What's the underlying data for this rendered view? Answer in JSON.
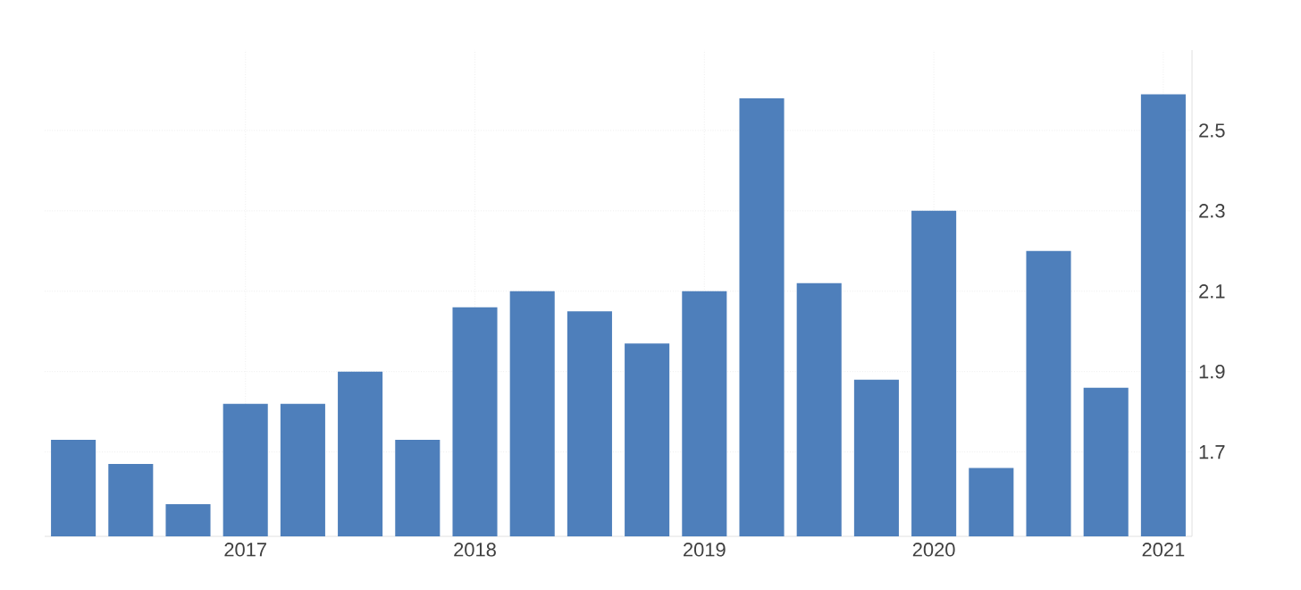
{
  "chart_data": {
    "type": "bar",
    "categories": [
      null,
      null,
      null,
      "2017",
      null,
      null,
      null,
      "2018",
      null,
      null,
      null,
      "2019",
      null,
      null,
      null,
      "2020",
      null,
      null,
      null,
      "2021"
    ],
    "values": [
      1.73,
      1.67,
      1.57,
      1.82,
      1.82,
      1.9,
      1.73,
      2.06,
      2.1,
      2.05,
      1.97,
      2.1,
      2.58,
      2.12,
      1.88,
      2.3,
      1.66,
      2.2,
      1.86,
      2.59
    ],
    "color": "#4e7fbb",
    "ylim": [
      1.49,
      2.7
    ],
    "yticks": [
      1.7,
      1.9,
      2.1,
      2.3,
      2.5
    ],
    "grid": true
  }
}
